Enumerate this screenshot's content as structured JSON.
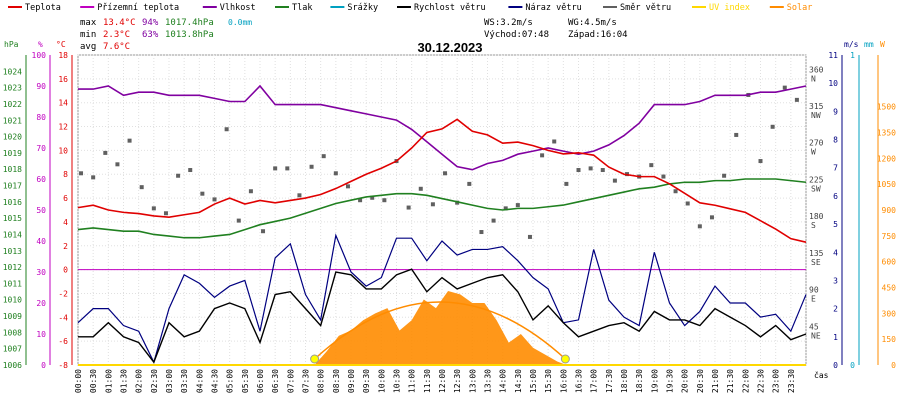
{
  "legend": [
    {
      "label": "Teplota",
      "color": "#e00000"
    },
    {
      "label": "Přízemní teplota",
      "color": "#c000c0"
    },
    {
      "label": "Vlhkost",
      "color": "#8000a0"
    },
    {
      "label": "Tlak",
      "color": "#208020"
    },
    {
      "label": "Srážky",
      "color": "#00a0c0"
    },
    {
      "label": "Rychlost větru",
      "color": "#000000"
    },
    {
      "label": "Náraz větru",
      "color": "#000080"
    },
    {
      "label": "Směr větru",
      "color": "#606060"
    },
    {
      "label": "UV index",
      "color": "#ffd800"
    },
    {
      "label": "Solar",
      "color": "#ff8c00"
    }
  ],
  "stats": {
    "max": {
      "label": "max",
      "temp": "13.4°C",
      "hum": "94%",
      "press": "1017.4hPa",
      "rain": "0.0mm"
    },
    "min": {
      "label": "min",
      "temp": "2.3°C",
      "hum": "63%",
      "press": "1013.8hPa"
    },
    "avg": {
      "label": "avg",
      "temp": "7.6°C"
    }
  },
  "wind_info": {
    "ws": "WS:3.2m/s",
    "wg": "WG:4.5m/s",
    "sunrise": "Východ:07:48",
    "sunset": "Západ:16:04"
  },
  "date": "30.12.2023",
  "axes": {
    "unit_hpa": "hPa",
    "unit_pct": "%",
    "unit_c": "°C",
    "unit_ms": "m/s",
    "unit_mm": "mm",
    "unit_w": "W",
    "time_label": "čas"
  },
  "chart_data": {
    "type": "line",
    "title": "30.12.2023",
    "x_ticks": [
      "00:00",
      "00:30",
      "01:00",
      "01:30",
      "02:00",
      "02:30",
      "03:00",
      "03:30",
      "04:00",
      "04:30",
      "05:00",
      "05:30",
      "06:00",
      "06:30",
      "07:00",
      "07:30",
      "08:00",
      "08:30",
      "09:00",
      "09:30",
      "10:00",
      "10:30",
      "11:00",
      "11:30",
      "12:00",
      "12:30",
      "13:00",
      "13:30",
      "14:00",
      "14:30",
      "15:00",
      "15:30",
      "16:00",
      "16:30",
      "17:00",
      "17:30",
      "18:00",
      "18:30",
      "19:00",
      "19:30",
      "20:00",
      "20:30",
      "21:00",
      "21:30",
      "22:00",
      "22:30",
      "23:00",
      "23:30"
    ],
    "x_range_hours": [
      0,
      24
    ],
    "axes": {
      "pressure_hpa": {
        "range": [
          1006,
          1025
        ],
        "ticks": [
          "1024",
          "1023",
          "1022",
          "1021",
          "1020",
          "1019",
          "1018",
          "1017",
          "1016",
          "1015",
          "1014",
          "1013",
          "1012",
          "1011",
          "1010",
          "1009",
          "1008",
          "1007",
          "1006"
        ]
      },
      "humidity_pct": {
        "range": [
          0,
          100
        ],
        "ticks": [
          "100",
          "90",
          "80",
          "70",
          "60",
          "50",
          "40",
          "30",
          "20",
          "10",
          "0"
        ]
      },
      "temperature_c": {
        "range": [
          -8,
          18
        ],
        "ticks": [
          "18",
          "16",
          "14",
          "12",
          "10",
          "8",
          "6",
          "4",
          "2",
          "0",
          "-2",
          "-4",
          "-6",
          "-8"
        ]
      },
      "wind_dir_deg": {
        "range": [
          0,
          380
        ],
        "ticks": [
          "360 N",
          "315 NW",
          "270 W",
          "225 SW",
          "180 S",
          "135 SE",
          "90 E",
          "45 NE"
        ]
      },
      "wind_ms": {
        "range": [
          0,
          11
        ],
        "ticks": [
          "11",
          "10",
          "9",
          "8",
          "7",
          "6",
          "5",
          "4",
          "3",
          "2",
          "1",
          "0"
        ]
      },
      "rain_mm": {
        "range": [
          0,
          1
        ],
        "ticks": [
          "1",
          "0"
        ]
      },
      "solar_w": {
        "range": [
          0,
          1800
        ],
        "ticks": [
          "1500",
          "1350",
          "1200",
          "1050",
          "900",
          "750",
          "600",
          "450",
          "300",
          "150",
          "0"
        ]
      }
    },
    "series": [
      {
        "name": "Teplota",
        "axis": "temperature_c",
        "color": "#e00000",
        "x": [
          0,
          0.5,
          1,
          1.5,
          2,
          2.5,
          3,
          3.5,
          4,
          4.5,
          5,
          5.5,
          6,
          6.5,
          7,
          7.5,
          8,
          8.5,
          9,
          9.5,
          10,
          10.5,
          11,
          11.5,
          12,
          12.5,
          13,
          13.5,
          14,
          14.5,
          15,
          15.5,
          16,
          16.5,
          17,
          17.5,
          18,
          18.5,
          19,
          19.5,
          20,
          20.5,
          21,
          21.5,
          22,
          22.5,
          23,
          23.5,
          24
        ],
        "y": [
          5.2,
          5.4,
          5.0,
          4.8,
          4.7,
          4.5,
          4.4,
          4.6,
          4.8,
          5.5,
          6.0,
          5.5,
          5.8,
          5.6,
          5.8,
          6.0,
          6.3,
          6.8,
          7.4,
          8.0,
          8.5,
          9.1,
          10.2,
          11.5,
          11.8,
          12.6,
          11.6,
          11.3,
          10.6,
          10.7,
          10.4,
          10.0,
          9.7,
          9.8,
          9.6,
          8.6,
          8.0,
          7.8,
          7.8,
          7.2,
          6.4,
          5.6,
          5.4,
          5.1,
          4.8,
          4.1,
          3.4,
          2.6,
          2.3
        ]
      },
      {
        "name": "Vlhkost",
        "axis": "humidity_pct",
        "color": "#8000a0",
        "x": [
          0,
          0.5,
          1,
          1.5,
          2,
          2.5,
          3,
          3.5,
          4,
          4.5,
          5,
          5.5,
          6,
          6.5,
          7,
          7.5,
          8,
          8.5,
          9,
          9.5,
          10,
          10.5,
          11,
          11.5,
          12,
          12.5,
          13,
          13.5,
          14,
          14.5,
          15,
          15.5,
          16,
          16.5,
          17,
          17.5,
          18,
          18.5,
          19,
          19.5,
          20,
          20.5,
          21,
          21.5,
          22,
          22.5,
          23,
          23.5,
          24
        ],
        "y": [
          89,
          89,
          90,
          87,
          88,
          88,
          87,
          87,
          87,
          86,
          85,
          85,
          90,
          84,
          84,
          84,
          84,
          83,
          82,
          81,
          80,
          79,
          76,
          72,
          68,
          64,
          63,
          65,
          66,
          68,
          69,
          70,
          69,
          68,
          69,
          71,
          74,
          78,
          84,
          84,
          84,
          85,
          87,
          87,
          87,
          88,
          88,
          89,
          90
        ]
      },
      {
        "name": "Tlak",
        "axis": "pressure_hpa",
        "color": "#208020",
        "x": [
          0,
          0.5,
          1,
          1.5,
          2,
          2.5,
          3,
          3.5,
          4,
          4.5,
          5,
          5.5,
          6,
          6.5,
          7,
          7.5,
          8,
          8.5,
          9,
          9.5,
          10,
          10.5,
          11,
          11.5,
          12,
          12.5,
          13,
          13.5,
          14,
          14.5,
          15,
          15.5,
          16,
          16.5,
          17,
          17.5,
          18,
          18.5,
          19,
          19.5,
          20,
          20.5,
          21,
          21.5,
          22,
          22.5,
          23,
          23.5,
          24
        ],
        "y": [
          1014.3,
          1014.4,
          1014.3,
          1014.2,
          1014.2,
          1014.0,
          1013.9,
          1013.8,
          1013.8,
          1013.9,
          1014.0,
          1014.3,
          1014.6,
          1014.8,
          1015.0,
          1015.3,
          1015.6,
          1015.9,
          1016.1,
          1016.3,
          1016.4,
          1016.5,
          1016.5,
          1016.4,
          1016.2,
          1016.0,
          1015.8,
          1015.6,
          1015.5,
          1015.6,
          1015.6,
          1015.7,
          1015.8,
          1016.0,
          1016.2,
          1016.4,
          1016.6,
          1016.8,
          1016.9,
          1017.1,
          1017.2,
          1017.2,
          1017.3,
          1017.3,
          1017.4,
          1017.4,
          1017.4,
          1017.3,
          1017.2
        ]
      },
      {
        "name": "Rychlost větru",
        "axis": "wind_ms",
        "color": "#000000",
        "x": [
          0,
          0.5,
          1,
          1.5,
          2,
          2.5,
          3,
          3.5,
          4,
          4.5,
          5,
          5.5,
          6,
          6.5,
          7,
          7.5,
          8,
          8.5,
          9,
          9.5,
          10,
          10.5,
          11,
          11.5,
          12,
          12.5,
          13,
          13.5,
          14,
          14.5,
          15,
          15.5,
          16,
          16.5,
          17,
          17.5,
          18,
          18.5,
          19,
          19.5,
          20,
          20.5,
          21,
          21.5,
          22,
          22.5,
          23,
          23.5,
          24
        ],
        "y": [
          1,
          1,
          1.5,
          1,
          0.8,
          0.1,
          1.5,
          1,
          1.2,
          2,
          2.2,
          2,
          0.8,
          2.5,
          2.6,
          2,
          1.4,
          3.3,
          3.2,
          2.7,
          2.7,
          3.2,
          3.4,
          2.6,
          3.1,
          2.7,
          2.9,
          3.1,
          3.2,
          2.6,
          1.6,
          2.1,
          1.5,
          1,
          1.2,
          1.4,
          1.5,
          1.2,
          1.9,
          1.6,
          1.6,
          1.4,
          2,
          1.7,
          1.4,
          1.0,
          1.4,
          0.9,
          1.1
        ]
      },
      {
        "name": "Náraz větru",
        "axis": "wind_ms",
        "color": "#000080",
        "x": [
          0,
          0.5,
          1,
          1.5,
          2,
          2.5,
          3,
          3.5,
          4,
          4.5,
          5,
          5.5,
          6,
          6.5,
          7,
          7.5,
          8,
          8.5,
          9,
          9.5,
          10,
          10.5,
          11,
          11.5,
          12,
          12.5,
          13,
          13.5,
          14,
          14.5,
          15,
          15.5,
          16,
          16.5,
          17,
          17.5,
          18,
          18.5,
          19,
          19.5,
          20,
          20.5,
          21,
          21.5,
          22,
          22.5,
          23,
          23.5,
          24
        ],
        "y": [
          1.5,
          2,
          2,
          1.4,
          1.2,
          0.1,
          2,
          3.2,
          2.9,
          2.4,
          2.8,
          3,
          1.2,
          3.8,
          4.3,
          2.5,
          1.6,
          4.6,
          3.3,
          2.8,
          3.1,
          4.5,
          4.5,
          3.7,
          4.4,
          3.9,
          4.1,
          4.1,
          4.2,
          3.7,
          3.1,
          2.7,
          1.5,
          1.6,
          4.1,
          2.3,
          1.7,
          1.4,
          4.0,
          2.2,
          1.4,
          1.9,
          2.8,
          2.2,
          2.2,
          1.7,
          1.8,
          1.2,
          2.5
        ]
      },
      {
        "name": "Směr větru",
        "axis": "wind_dir_deg",
        "color": "#606060",
        "x": [
          0.1,
          0.5,
          0.9,
          1.3,
          1.7,
          2.1,
          2.5,
          2.9,
          3.3,
          3.7,
          4.1,
          4.5,
          4.9,
          5.3,
          5.7,
          6.1,
          6.5,
          6.9,
          7.3,
          7.7,
          8.1,
          8.5,
          8.9,
          9.3,
          9.7,
          10.1,
          10.5,
          10.9,
          11.3,
          11.7,
          12.1,
          12.5,
          12.9,
          13.3,
          13.7,
          14.1,
          14.5,
          14.9,
          15.3,
          15.7,
          16.1,
          16.5,
          16.9,
          17.3,
          17.7,
          18.1,
          18.5,
          18.9,
          19.3,
          19.7,
          20.1,
          20.5,
          20.9,
          21.3,
          21.7,
          22.1,
          22.5,
          22.9,
          23.3,
          23.7
        ],
        "y": [
          235,
          230,
          260,
          246,
          275,
          218,
          192,
          186,
          232,
          239,
          210,
          203,
          289,
          177,
          213,
          164,
          241,
          241,
          208,
          243,
          256,
          235,
          219,
          202,
          205,
          202,
          250,
          193,
          216,
          197,
          235,
          199,
          222,
          163,
          177,
          192,
          196,
          157,
          257,
          274,
          222,
          239,
          241,
          239,
          226,
          234,
          231,
          245,
          231,
          213,
          198,
          170,
          181,
          232,
          282,
          331,
          250,
          292,
          340,
          325
        ]
      },
      {
        "name": "Solar",
        "axis": "solar_w",
        "color": "#ff8c00",
        "x": [
          7.8,
          8.2,
          8.6,
          9.0,
          9.4,
          9.8,
          10.2,
          10.6,
          11.0,
          11.4,
          11.8,
          12.2,
          12.6,
          13.0,
          13.4,
          13.8,
          14.2,
          14.6,
          15.0,
          15.4,
          15.8,
          16.1
        ],
        "y": [
          0,
          80,
          170,
          200,
          260,
          300,
          330,
          200,
          260,
          380,
          330,
          430,
          410,
          360,
          360,
          260,
          130,
          180,
          100,
          60,
          20,
          0
        ]
      }
    ],
    "sun_arc": {
      "sunrise_hour": 7.8,
      "sunset_hour": 16.067
    },
    "grid": true,
    "legend_position": "top"
  }
}
